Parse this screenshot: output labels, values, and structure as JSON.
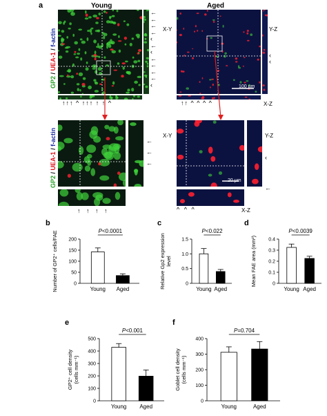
{
  "panel_a": {
    "letter": "a",
    "young_title": "Young",
    "aged_title": "Aged",
    "stain_label_gp2": "GP2",
    "stain_label_uea": "UEA-1",
    "stain_label_factin": "f-actin",
    "sep": "/",
    "xy": "X-Y",
    "yz": "Y-Z",
    "xz": "X-Z",
    "scale_100": "100 µm",
    "scale_20": "20 µm",
    "young_top_bottom_arrows": "↑↑↑ ^ ↑↑↑ ↑ ↑ ^",
    "aged_top_bottom_arrows": "↑↑ ^  ^ ^ ^",
    "young_bottom_arrows": "↑   ↑   ↑   ↑",
    "aged_bottom_marks": "^    ^       ^"
  },
  "colors": {
    "green": "#3fd23a",
    "red": "#ff2030",
    "blue": "#1a2a8a",
    "dark": "#050830"
  },
  "chart_data": [
    {
      "panel": "b",
      "type": "bar",
      "categories": [
        "Young",
        "Aged"
      ],
      "values": [
        142,
        35
      ],
      "errors": [
        18,
        8
      ],
      "ylabel": "Number of GP2⁺ cells/FAE",
      "ylim": [
        0,
        200
      ],
      "yticks": [
        "0",
        "50",
        "100",
        "150",
        "200"
      ],
      "pvalue": "P<0.0001"
    },
    {
      "panel": "c",
      "type": "bar",
      "categories": [
        "Young",
        "Aged"
      ],
      "values": [
        1.0,
        0.4
      ],
      "errors": [
        0.18,
        0.07
      ],
      "ylabel": "Relative Gp2 expression level",
      "ylim": [
        0,
        1.5
      ],
      "yticks": [
        "0",
        "0.5",
        "1.0",
        "1.5"
      ],
      "pvalue": "P<0.022"
    },
    {
      "panel": "d",
      "type": "bar",
      "categories": [
        "Young",
        "Aged"
      ],
      "values": [
        0.325,
        0.225
      ],
      "errors": [
        0.03,
        0.02
      ],
      "ylabel": "Mean FAE area (mm²)",
      "ylim": [
        0,
        0.4
      ],
      "yticks": [
        "0",
        "0.1",
        "0.2",
        "0.3",
        "0.4"
      ],
      "pvalue": "P<0.0039"
    },
    {
      "panel": "e",
      "type": "bar",
      "categories": [
        "Young",
        "Aged"
      ],
      "values": [
        430,
        198
      ],
      "errors": [
        30,
        50
      ],
      "ylabel": "GP2⁺ cell density (cells mm⁻¹)",
      "ylim": [
        0,
        500
      ],
      "yticks": [
        "0",
        "100",
        "200",
        "300",
        "400",
        "500"
      ],
      "pvalue": "P<0.001"
    },
    {
      "panel": "f",
      "type": "bar",
      "categories": [
        "Young",
        "Aged"
      ],
      "values": [
        312,
        333
      ],
      "errors": [
        35,
        48
      ],
      "ylabel": "Goblet cell density (cells mm⁻¹)",
      "ylim": [
        0,
        400
      ],
      "yticks": [
        "0",
        "100",
        "200",
        "300",
        "400"
      ],
      "pvalue": "P=0.704"
    }
  ]
}
